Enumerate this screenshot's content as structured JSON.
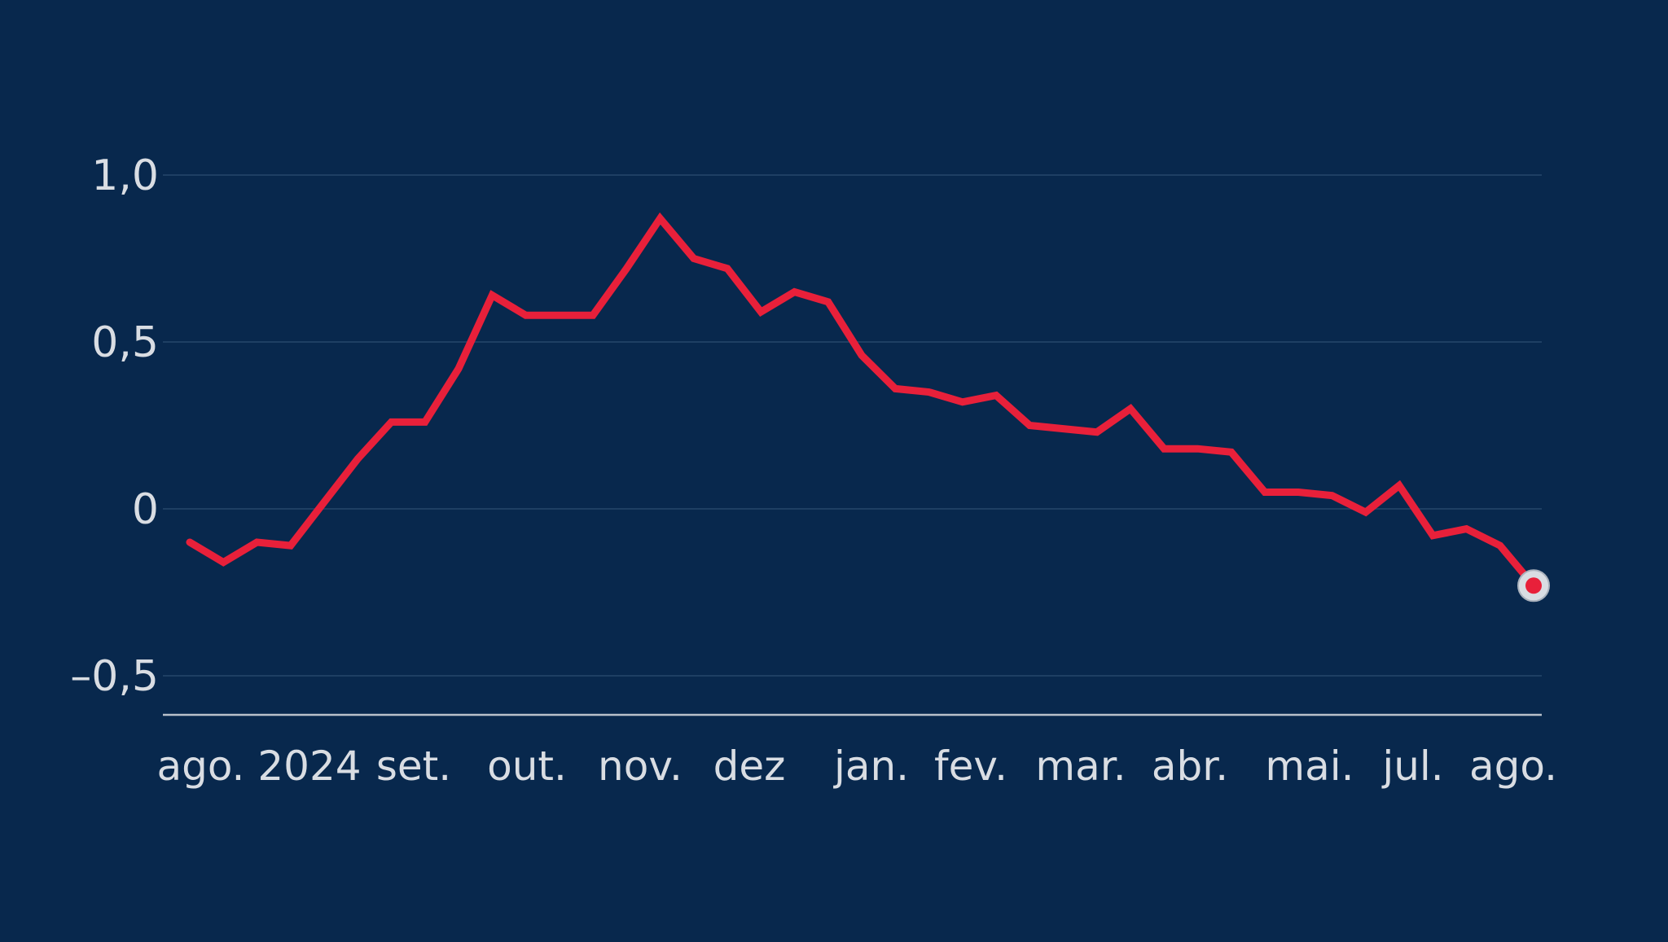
{
  "chart_data": {
    "type": "line",
    "x_labels": [
      "ago. 2024",
      "set.",
      "out.",
      "nov.",
      "dez",
      "jan.",
      "fev.",
      "mar.",
      "abr.",
      "mai.",
      "jul.",
      "ago."
    ],
    "y_ticks": [
      "1,0",
      "0,5",
      "0",
      "–0,5"
    ],
    "y_tick_values": [
      1.0,
      0.5,
      0,
      -0.5
    ],
    "ylim": [
      -0.62,
      1.0
    ],
    "grid": true,
    "legend": "none",
    "series": [
      {
        "values": [
          -0.1,
          -0.16,
          -0.1,
          -0.11,
          0.02,
          0.15,
          0.26,
          0.26,
          0.42,
          0.64,
          0.58,
          0.58,
          0.58,
          0.72,
          0.87,
          0.75,
          0.72,
          0.59,
          0.65,
          0.62,
          0.46,
          0.36,
          0.35,
          0.32,
          0.34,
          0.25,
          0.24,
          0.23,
          0.3,
          0.18,
          0.18,
          0.17,
          0.05,
          0.05,
          0.04,
          -0.01,
          0.07,
          -0.08,
          -0.06,
          -0.11,
          -0.23
        ]
      }
    ],
    "colors": {
      "background": "#08284d",
      "line": "#e8203a",
      "gridline": "#1e3f63",
      "axis": "#b8c0ca",
      "text": "#d9dde3",
      "end_marker_ring": "#d9dde3"
    }
  }
}
